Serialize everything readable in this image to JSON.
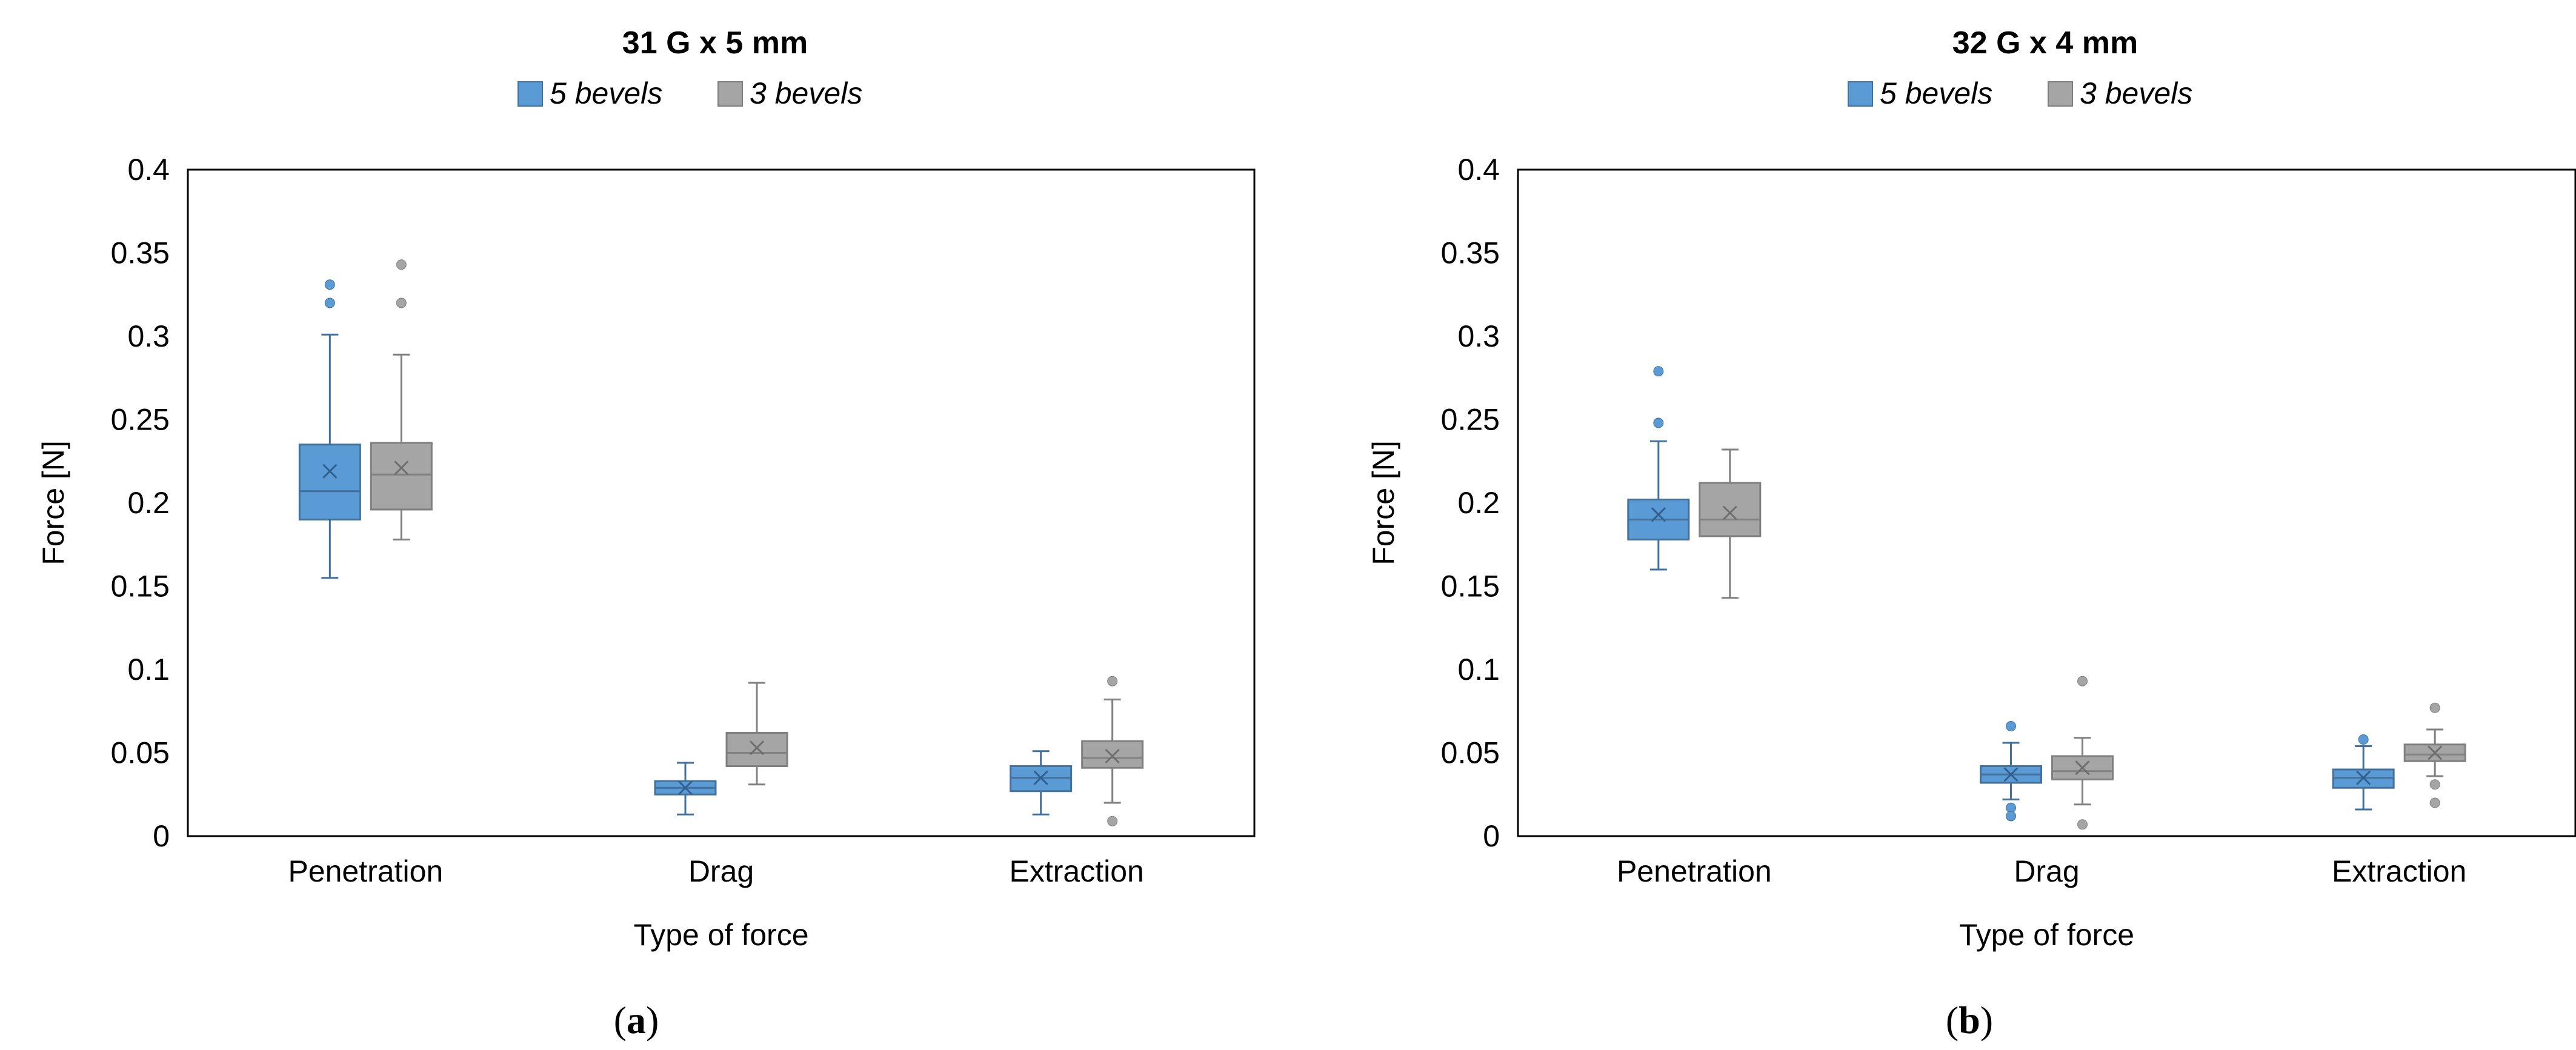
{
  "figure": {
    "subfigure_labels": [
      {
        "open": "(",
        "letter": "a",
        "close": ")"
      },
      {
        "open": "(",
        "letter": "b",
        "close": ")"
      }
    ]
  },
  "colors": {
    "five_bevels_fill": "#5b9bd5",
    "five_bevels_stroke": "#41719c",
    "three_bevels_fill": "#a5a5a5",
    "three_bevels_stroke": "#808080",
    "axis": "#000000",
    "frame": "#000000"
  },
  "chart_data": [
    {
      "type": "box",
      "title": "31 G x 5 mm",
      "xlabel": "Type of force",
      "ylabel": "Force [N]",
      "ylim": [
        0,
        0.4
      ],
      "yticks": [
        "0",
        "0.05",
        "0.1",
        "0.15",
        "0.2",
        "0.25",
        "0.3",
        "0.35",
        "0.4"
      ],
      "yticks_values": [
        0,
        0.05,
        0.1,
        0.15,
        0.2,
        0.25,
        0.3,
        0.35,
        0.4
      ],
      "categories": [
        "Penetration",
        "Drag",
        "Extraction"
      ],
      "legend": [
        "5 bevels",
        "3 bevels"
      ],
      "legend_position": "top-center",
      "grid": false,
      "series": [
        {
          "name": "5 bevels",
          "boxes": [
            {
              "min": 0.155,
              "q1": 0.19,
              "median": 0.207,
              "q3": 0.235,
              "max": 0.301,
              "mean": 0.219,
              "outliers": [
                0.32,
                0.331
              ]
            },
            {
              "min": 0.013,
              "q1": 0.025,
              "median": 0.029,
              "q3": 0.033,
              "max": 0.044,
              "mean": 0.029,
              "outliers": []
            },
            {
              "min": 0.013,
              "q1": 0.027,
              "median": 0.035,
              "q3": 0.042,
              "max": 0.051,
              "mean": 0.035,
              "outliers": []
            }
          ]
        },
        {
          "name": "3 bevels",
          "boxes": [
            {
              "min": 0.178,
              "q1": 0.196,
              "median": 0.217,
              "q3": 0.236,
              "max": 0.289,
              "mean": 0.221,
              "outliers": [
                0.32,
                0.343
              ]
            },
            {
              "min": 0.031,
              "q1": 0.042,
              "median": 0.05,
              "q3": 0.062,
              "max": 0.092,
              "mean": 0.053,
              "outliers": []
            },
            {
              "min": 0.02,
              "q1": 0.041,
              "median": 0.047,
              "q3": 0.057,
              "max": 0.082,
              "mean": 0.048,
              "outliers": [
                0.093,
                0.009
              ]
            }
          ]
        }
      ]
    },
    {
      "type": "box",
      "title": "32 G x 4 mm",
      "xlabel": "Type of force",
      "ylabel": "Force [N]",
      "ylim": [
        0,
        0.4
      ],
      "yticks": [
        "0",
        "0.05",
        "0.1",
        "0.15",
        "0.2",
        "0.25",
        "0.3",
        "0.35",
        "0.4"
      ],
      "yticks_values": [
        0,
        0.05,
        0.1,
        0.15,
        0.2,
        0.25,
        0.3,
        0.35,
        0.4
      ],
      "categories": [
        "Penetration",
        "Drag",
        "Extraction"
      ],
      "legend": [
        "5 bevels",
        "3 bevels"
      ],
      "legend_position": "top-center",
      "grid": false,
      "series": [
        {
          "name": "5 bevels",
          "boxes": [
            {
              "min": 0.16,
              "q1": 0.178,
              "median": 0.19,
              "q3": 0.202,
              "max": 0.237,
              "mean": 0.193,
              "outliers": [
                0.248,
                0.279
              ]
            },
            {
              "min": 0.022,
              "q1": 0.032,
              "median": 0.037,
              "q3": 0.042,
              "max": 0.056,
              "mean": 0.037,
              "outliers": [
                0.066,
                0.017,
                0.012
              ]
            },
            {
              "min": 0.016,
              "q1": 0.029,
              "median": 0.035,
              "q3": 0.04,
              "max": 0.054,
              "mean": 0.035,
              "outliers": [
                0.058
              ]
            }
          ]
        },
        {
          "name": "3 bevels",
          "boxes": [
            {
              "min": 0.143,
              "q1": 0.18,
              "median": 0.19,
              "q3": 0.212,
              "max": 0.232,
              "mean": 0.194,
              "outliers": []
            },
            {
              "min": 0.019,
              "q1": 0.034,
              "median": 0.039,
              "q3": 0.048,
              "max": 0.059,
              "mean": 0.041,
              "outliers": [
                0.093,
                0.007
              ]
            },
            {
              "min": 0.036,
              "q1": 0.045,
              "median": 0.049,
              "q3": 0.055,
              "max": 0.064,
              "mean": 0.05,
              "outliers": [
                0.077,
                0.031,
                0.02
              ]
            }
          ]
        }
      ]
    }
  ]
}
